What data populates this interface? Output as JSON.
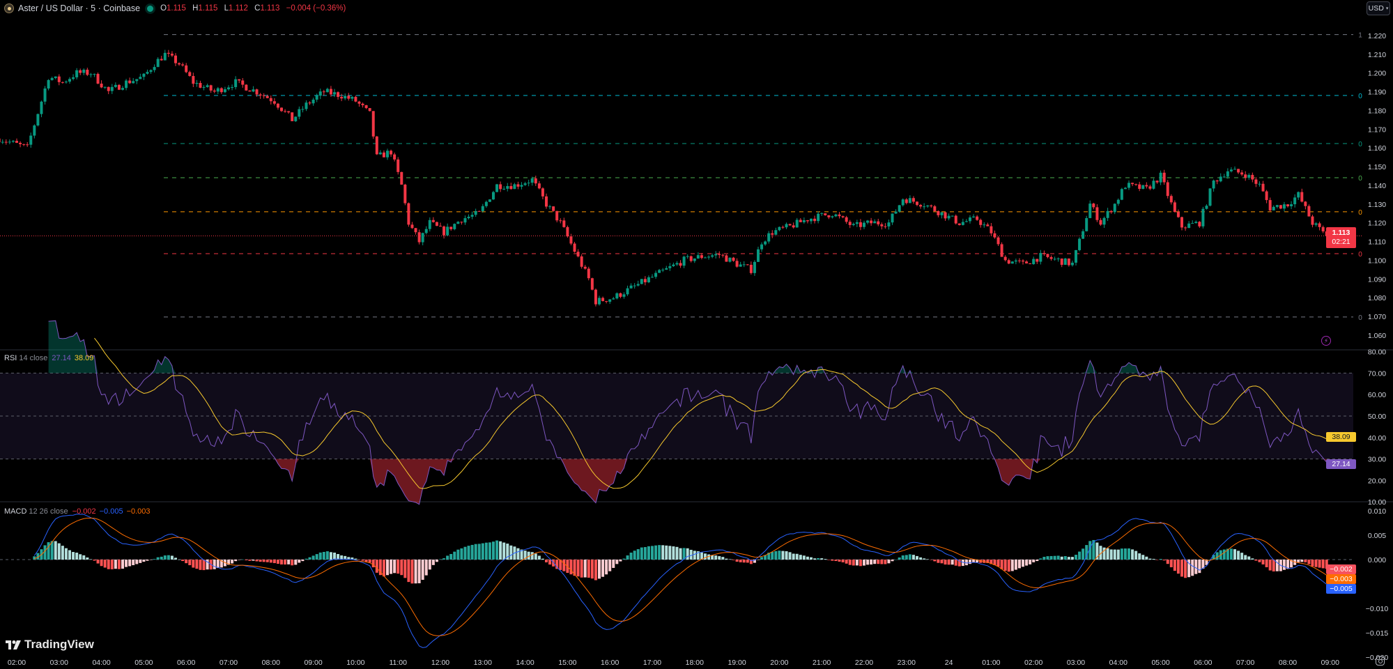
{
  "header": {
    "symbol_title": "Aster / US Dollar · 5 · Coinbase",
    "status_dot_color": "#089981",
    "ohlc": {
      "o_label": "O",
      "o": "1.115",
      "h_label": "H",
      "h": "1.115",
      "l_label": "L",
      "l": "1.112",
      "c_label": "C",
      "c": "1.113",
      "change": "−0.004 (−0.36%)"
    }
  },
  "currency_button": {
    "label": "USD"
  },
  "colors": {
    "up": "#089981",
    "down": "#f23645",
    "rsi": "#7e57c2",
    "rsi_ma": "#f7c92e",
    "macd": "#2962ff",
    "signal": "#ff6d00"
  },
  "price_axis": {
    "ticks": [
      "1.220",
      "1.210",
      "1.200",
      "1.190",
      "1.180",
      "1.170",
      "1.160",
      "1.150",
      "1.140",
      "1.130",
      "1.120",
      "1.110",
      "1.100",
      "1.090",
      "1.080",
      "1.070",
      "1.060"
    ],
    "current_price": "1.113",
    "countdown": "02:21"
  },
  "fib_levels": [
    {
      "price": 1.2205,
      "label": "1",
      "color": "#787b86"
    },
    {
      "price": 1.188,
      "label": "0",
      "color": "#00bcd4"
    },
    {
      "price": 1.1623,
      "label": "0",
      "color": "#089981"
    },
    {
      "price": 1.1441,
      "label": "0",
      "color": "#4caf50"
    },
    {
      "price": 1.1259,
      "label": "0",
      "color": "#ff9800"
    },
    {
      "price": 1.1035,
      "label": "0",
      "color": "#f23645"
    },
    {
      "price": 1.0697,
      "label": "0",
      "color": "#787b86"
    }
  ],
  "rsi": {
    "title": "RSI",
    "params": "14 close",
    "value": "27.14",
    "ma_value": "38.09",
    "ticks": [
      "80.00",
      "70.00",
      "60.00",
      "50.00",
      "40.00",
      "30.00",
      "20.00",
      "10.00"
    ],
    "levels": [
      70,
      50,
      30
    ]
  },
  "macd": {
    "title": "MACD",
    "params": "12 26 close",
    "hist": "−0.002",
    "macd": "−0.005",
    "signal": "−0.003",
    "ticks": [
      "0.010",
      "0.005",
      "0.000",
      "−0.010",
      "−0.015",
      "−0.020"
    ]
  },
  "time_axis": {
    "labels": [
      "02:00",
      "03:00",
      "04:00",
      "05:00",
      "06:00",
      "07:00",
      "08:00",
      "09:00",
      "10:00",
      "11:00",
      "12:00",
      "13:00",
      "14:00",
      "15:00",
      "16:00",
      "17:00",
      "18:00",
      "19:00",
      "20:00",
      "21:00",
      "22:00",
      "23:00",
      "24",
      "01:00",
      "02:00",
      "03:00",
      "04:00",
      "05:00",
      "06:00",
      "07:00",
      "08:00",
      "09:00"
    ]
  },
  "logo": "TradingView",
  "chart_data": {
    "type": "candlestick",
    "interval": "5",
    "ylim": [
      1.055,
      1.225
    ],
    "close_path": [
      [
        "01:35",
        1.165
      ],
      [
        "02:15",
        1.16
      ],
      [
        "02:35",
        1.185
      ],
      [
        "02:45",
        1.198
      ],
      [
        "03:05",
        1.195
      ],
      [
        "03:25",
        1.2
      ],
      [
        "03:45",
        1.2
      ],
      [
        "04:10",
        1.19
      ],
      [
        "04:35",
        1.195
      ],
      [
        "05:00",
        1.198
      ],
      [
        "05:15",
        1.205
      ],
      [
        "05:30",
        1.21
      ],
      [
        "05:50",
        1.205
      ],
      [
        "06:10",
        1.195
      ],
      [
        "06:40",
        1.19
      ],
      [
        "07:10",
        1.195
      ],
      [
        "07:40",
        1.19
      ],
      [
        "08:05",
        1.185
      ],
      [
        "08:30",
        1.175
      ],
      [
        "08:50",
        1.183
      ],
      [
        "09:15",
        1.19
      ],
      [
        "09:40",
        1.188
      ],
      [
        "10:00",
        1.185
      ],
      [
        "10:20",
        1.178
      ],
      [
        "10:30",
        1.155
      ],
      [
        "10:50",
        1.158
      ],
      [
        "11:05",
        1.14
      ],
      [
        "11:15",
        1.12
      ],
      [
        "11:30",
        1.11
      ],
      [
        "11:45",
        1.12
      ],
      [
        "12:05",
        1.115
      ],
      [
        "12:30",
        1.122
      ],
      [
        "12:55",
        1.125
      ],
      [
        "13:20",
        1.14
      ],
      [
        "13:45",
        1.14
      ],
      [
        "14:10",
        1.143
      ],
      [
        "14:30",
        1.13
      ],
      [
        "14:50",
        1.12
      ],
      [
        "15:10",
        1.105
      ],
      [
        "15:30",
        1.09
      ],
      [
        "15:40",
        1.078
      ],
      [
        "16:05",
        1.08
      ],
      [
        "16:30",
        1.085
      ],
      [
        "16:55",
        1.09
      ],
      [
        "17:20",
        1.095
      ],
      [
        "17:45",
        1.1
      ],
      [
        "18:10",
        1.102
      ],
      [
        "18:35",
        1.103
      ],
      [
        "19:00",
        1.098
      ],
      [
        "19:20",
        1.095
      ],
      [
        "19:35",
        1.11
      ],
      [
        "19:50",
        1.115
      ],
      [
        "20:15",
        1.118
      ],
      [
        "20:40",
        1.122
      ],
      [
        "21:15",
        1.125
      ],
      [
        "21:45",
        1.118
      ],
      [
        "22:10",
        1.12
      ],
      [
        "22:35",
        1.12
      ],
      [
        "22:55",
        1.133
      ],
      [
        "23:25",
        1.13
      ],
      [
        "23:50",
        1.125
      ],
      [
        "00:15",
        1.12
      ],
      [
        "00:40",
        1.122
      ],
      [
        "01:00",
        1.115
      ],
      [
        "01:20",
        1.1
      ],
      [
        "01:45",
        1.098
      ],
      [
        "02:10",
        1.102
      ],
      [
        "02:35",
        1.1
      ],
      [
        "02:55",
        1.098
      ],
      [
        "03:05",
        1.11
      ],
      [
        "03:20",
        1.13
      ],
      [
        "03:35",
        1.12
      ],
      [
        "03:55",
        1.13
      ],
      [
        "04:10",
        1.14
      ],
      [
        "04:40",
        1.138
      ],
      [
        "05:00",
        1.145
      ],
      [
        "05:20",
        1.125
      ],
      [
        "05:30",
        1.118
      ],
      [
        "05:55",
        1.12
      ],
      [
        "06:15",
        1.142
      ],
      [
        "06:35",
        1.148
      ],
      [
        "07:00",
        1.146
      ],
      [
        "07:20",
        1.14
      ],
      [
        "07:35",
        1.128
      ],
      [
        "08:00",
        1.13
      ],
      [
        "08:15",
        1.135
      ],
      [
        "08:35",
        1.12
      ],
      [
        "08:55",
        1.113
      ]
    ]
  }
}
